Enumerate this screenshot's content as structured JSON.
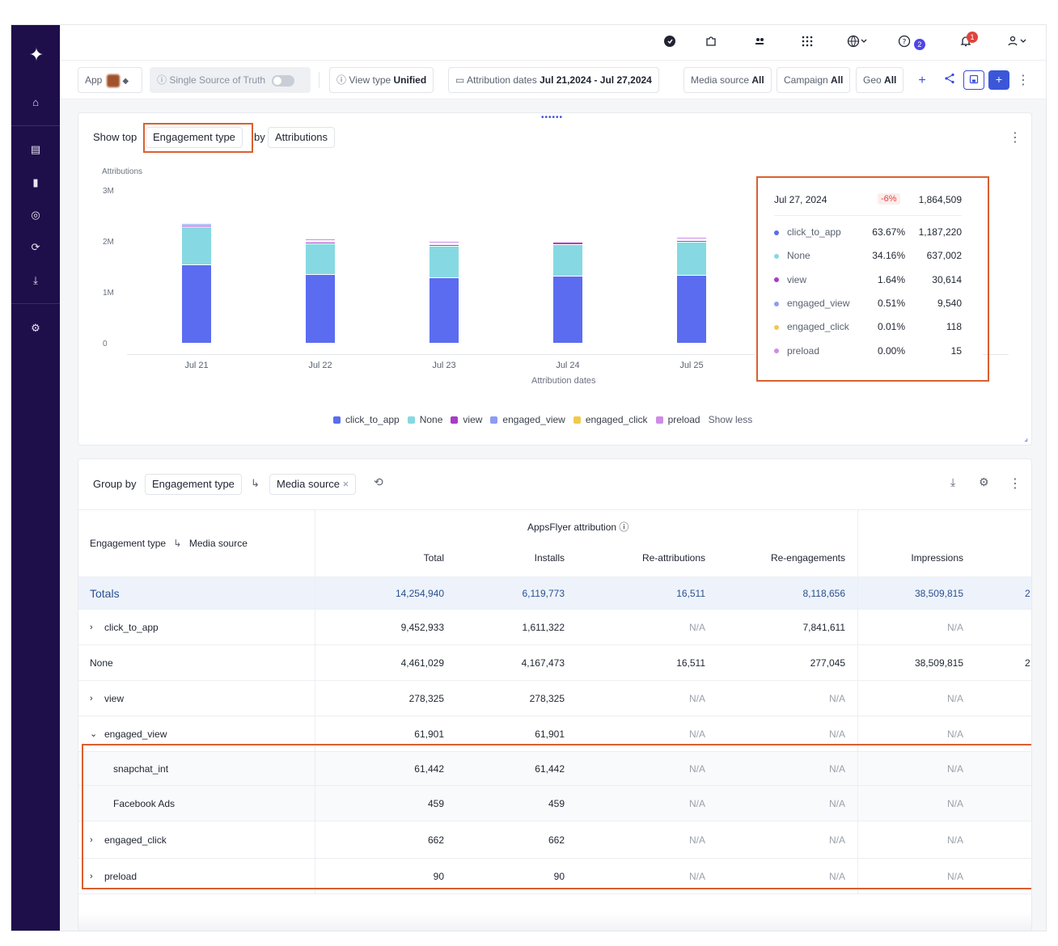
{
  "sidebar": {
    "logo": "✦",
    "items": [
      {
        "icon": "home-icon",
        "glyph": "⌂"
      },
      {
        "icon": "report-icon",
        "glyph": "▤"
      },
      {
        "icon": "bar-chart-icon",
        "glyph": "▮"
      },
      {
        "icon": "target-icon",
        "glyph": "◎"
      },
      {
        "icon": "sync-icon",
        "glyph": "⟳"
      },
      {
        "icon": "download-icon",
        "glyph": "⤓"
      },
      {
        "icon": "settings-icon",
        "glyph": "⚙"
      }
    ]
  },
  "topbar": {
    "help_badge": "2",
    "notifications_badge": "1"
  },
  "filters": {
    "app_label": "App",
    "ssot_label": "Single Source of Truth",
    "view_type_label": "View type",
    "view_type_value": "Unified",
    "attr_dates_label": "Attribution dates",
    "attr_dates_value": "Jul 21,2024 - Jul 27,2024",
    "media_source_label": "Media source",
    "media_source_value": "All",
    "campaign_label": "Campaign",
    "campaign_value": "All",
    "geo_label": "Geo",
    "geo_value": "All"
  },
  "chart_controls": {
    "show_top_label": "Show top",
    "dimension": "Engagement type",
    "by_label": "by",
    "metric": "Attributions",
    "show_less": "Show less"
  },
  "chart_data": {
    "type": "bar",
    "stacked": true,
    "ylabel": "Attributions",
    "xlabel": "Attribution dates",
    "yticks": [
      "3M",
      "2M",
      "1M",
      "0"
    ],
    "ylim": [
      0,
      3000000
    ],
    "categories": [
      "Jul 21",
      "Jul 22",
      "Jul 23",
      "Jul 24",
      "Jul 25"
    ],
    "series": [
      {
        "name": "click_to_app",
        "color": "#5b6cf0",
        "values": [
          1550000,
          1360000,
          1290000,
          1330000,
          1340000
        ]
      },
      {
        "name": "None",
        "color": "#86d9e2",
        "values": [
          740000,
          600000,
          620000,
          620000,
          650000
        ]
      },
      {
        "name": "view",
        "color": "#a93bc4",
        "values": [
          40000,
          38000,
          36000,
          37000,
          38000
        ]
      },
      {
        "name": "engaged_view",
        "color": "#8e9cf2",
        "values": [
          25000,
          20000,
          19000,
          19000,
          20000
        ]
      },
      {
        "name": "engaged_click",
        "color": "#f2c94c",
        "values": [
          1000,
          800,
          800,
          800,
          800
        ]
      },
      {
        "name": "preload",
        "color": "#d08ae8",
        "values": [
          30000,
          28000,
          27000,
          27000,
          28000
        ]
      }
    ],
    "legend_position": "bottom",
    "grid": false
  },
  "tooltip": {
    "date": "Jul 27, 2024",
    "change": "-6%",
    "total": "1,864,509",
    "rows": [
      {
        "name": "click_to_app",
        "pct": "63.67%",
        "value": "1,187,220",
        "color": "#5b6cf0"
      },
      {
        "name": "None",
        "pct": "34.16%",
        "value": "637,002",
        "color": "#86d9e2"
      },
      {
        "name": "view",
        "pct": "1.64%",
        "value": "30,614",
        "color": "#a93bc4"
      },
      {
        "name": "engaged_view",
        "pct": "0.51%",
        "value": "9,540",
        "color": "#8e9cf2"
      },
      {
        "name": "engaged_click",
        "pct": "0.01%",
        "value": "118",
        "color": "#f2c94c"
      },
      {
        "name": "preload",
        "pct": "0.00%",
        "value": "15",
        "color": "#d08ae8"
      }
    ]
  },
  "table_controls": {
    "group_by_label": "Group by",
    "group1": "Engagement type",
    "group2": "Media source"
  },
  "table": {
    "group_header": "AppsFlyer attribution",
    "first_col_header": "Engagement type",
    "first_col_header2": "Media source",
    "columns": [
      "Total",
      "Installs",
      "Re-attributions",
      "Re-engagements",
      "Impressions"
    ],
    "totals_label": "Totals",
    "totals": [
      "14,254,940",
      "6,119,773",
      "16,511",
      "8,118,656",
      "38,509,815"
    ],
    "totals_overflow": "2",
    "rows": [
      {
        "label": "click_to_app",
        "expand": "›",
        "values": [
          "9,452,933",
          "1,611,322",
          "N/A",
          "7,841,611",
          "N/A"
        ],
        "overflow": ""
      },
      {
        "label": "None",
        "expand": "",
        "values": [
          "4,461,029",
          "4,167,473",
          "16,511",
          "277,045",
          "38,509,815"
        ],
        "overflow": "2"
      },
      {
        "label": "view",
        "expand": "›",
        "values": [
          "278,325",
          "278,325",
          "N/A",
          "N/A",
          "N/A"
        ],
        "overflow": ""
      },
      {
        "label": "engaged_view",
        "expand": "⌄",
        "values": [
          "61,901",
          "61,901",
          "N/A",
          "N/A",
          "N/A"
        ],
        "overflow": ""
      },
      {
        "label": "snapchat_int",
        "expand": "",
        "child": true,
        "values": [
          "61,442",
          "61,442",
          "N/A",
          "N/A",
          "N/A"
        ],
        "overflow": ""
      },
      {
        "label": "Facebook Ads",
        "expand": "",
        "child": true,
        "values": [
          "459",
          "459",
          "N/A",
          "N/A",
          "N/A"
        ],
        "overflow": ""
      },
      {
        "label": "engaged_click",
        "expand": "›",
        "values": [
          "662",
          "662",
          "N/A",
          "N/A",
          "N/A"
        ],
        "overflow": ""
      },
      {
        "label": "preload",
        "expand": "›",
        "values": [
          "90",
          "90",
          "N/A",
          "N/A",
          "N/A"
        ],
        "overflow": ""
      }
    ]
  }
}
